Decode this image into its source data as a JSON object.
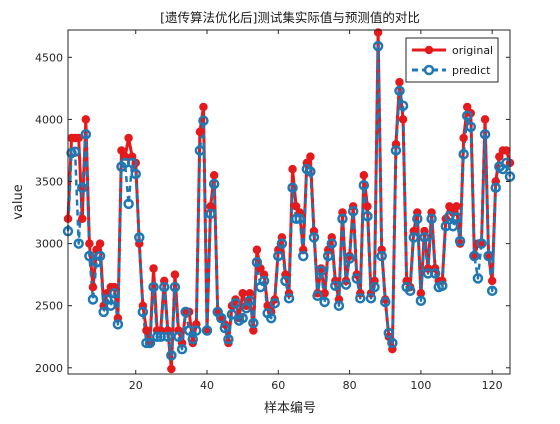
{
  "chart_data": {
    "type": "line",
    "title": "[遗传算法优化后]测试集实际值与预测值的对比",
    "xlabel": "样本编号",
    "ylabel": "value",
    "xlim": [
      1,
      125
    ],
    "ylim": [
      1950,
      4720
    ],
    "xticks": [
      20,
      40,
      60,
      80,
      100,
      120
    ],
    "yticks": [
      2000,
      2500,
      3000,
      3500,
      4000,
      4500
    ],
    "grid": false,
    "legend_position": "top-right",
    "series": [
      {
        "name": "original",
        "color": "#e41a1c",
        "line": "solid",
        "marker": "filled-circle",
        "x": [
          1,
          2,
          3,
          4,
          5,
          6,
          7,
          8,
          9,
          10,
          11,
          12,
          13,
          14,
          15,
          16,
          17,
          18,
          19,
          20,
          21,
          22,
          23,
          24,
          25,
          26,
          27,
          28,
          29,
          30,
          31,
          32,
          33,
          34,
          35,
          36,
          37,
          38,
          39,
          40,
          41,
          42,
          43,
          44,
          45,
          46,
          47,
          48,
          49,
          50,
          51,
          52,
          53,
          54,
          55,
          56,
          57,
          58,
          59,
          60,
          61,
          62,
          63,
          64,
          65,
          66,
          67,
          68,
          69,
          70,
          71,
          72,
          73,
          74,
          75,
          76,
          77,
          78,
          79,
          80,
          81,
          82,
          83,
          84,
          85,
          86,
          87,
          88,
          89,
          90,
          91,
          92,
          93,
          94,
          95,
          96,
          97,
          98,
          99,
          100,
          101,
          102,
          103,
          104,
          105,
          106,
          107,
          108,
          109,
          110,
          111,
          112,
          113,
          114,
          115,
          116,
          117,
          118,
          119,
          120,
          121,
          122,
          123,
          124,
          125
        ],
        "values": [
          3200,
          3850,
          3850,
          3850,
          3200,
          4000,
          3000,
          2650,
          2950,
          3000,
          2500,
          2600,
          2650,
          2650,
          2400,
          3750,
          3700,
          3850,
          3700,
          3650,
          3000,
          2500,
          2300,
          2200,
          2800,
          2300,
          2300,
          2700,
          2300,
          1990,
          2750,
          2300,
          2200,
          2450,
          2450,
          2200,
          2350,
          3900,
          4100,
          2300,
          3300,
          3550,
          2450,
          2400,
          2350,
          2200,
          2500,
          2550,
          2400,
          2600,
          2500,
          2600,
          2300,
          2950,
          2800,
          2750,
          2500,
          2450,
          2550,
          2950,
          3050,
          2750,
          2600,
          3600,
          3300,
          3250,
          2950,
          3650,
          3700,
          3100,
          2600,
          2800,
          2600,
          2950,
          3050,
          2700,
          2550,
          3250,
          2700,
          2900,
          3300,
          2750,
          2600,
          3550,
          3300,
          2600,
          2700,
          4700,
          2950,
          2550,
          2250,
          2150,
          3800,
          4300,
          4000,
          2700,
          2650,
          3100,
          3250,
          2600,
          3100,
          2800,
          3250,
          2800,
          2700,
          2700,
          3200,
          3300,
          3250,
          3300,
          3000,
          3850,
          4100,
          4050,
          2900,
          3000,
          3000,
          4000,
          2900,
          2700,
          3500,
          3700,
          3750,
          3750,
          3650
        ]
      },
      {
        "name": "predict",
        "color": "#1f78b4",
        "line": "dashed",
        "marker": "open-circle",
        "x": [
          1,
          2,
          3,
          4,
          5,
          6,
          7,
          8,
          9,
          10,
          11,
          12,
          13,
          14,
          15,
          16,
          17,
          18,
          19,
          20,
          21,
          22,
          23,
          24,
          25,
          26,
          27,
          28,
          29,
          30,
          31,
          32,
          33,
          34,
          35,
          36,
          37,
          38,
          39,
          40,
          41,
          42,
          43,
          44,
          45,
          46,
          47,
          48,
          49,
          50,
          51,
          52,
          53,
          54,
          55,
          56,
          57,
          58,
          59,
          60,
          61,
          62,
          63,
          64,
          65,
          66,
          67,
          68,
          69,
          70,
          71,
          72,
          73,
          74,
          75,
          76,
          77,
          78,
          79,
          80,
          81,
          82,
          83,
          84,
          85,
          86,
          87,
          88,
          89,
          90,
          91,
          92,
          93,
          94,
          95,
          96,
          97,
          98,
          99,
          100,
          101,
          102,
          103,
          104,
          105,
          106,
          107,
          108,
          109,
          110,
          111,
          112,
          113,
          114,
          115,
          116,
          117,
          118,
          119,
          120,
          121,
          122,
          123,
          124,
          125
        ],
        "values": [
          3100,
          3730,
          3740,
          3000,
          3450,
          3880,
          2900,
          2550,
          2850,
          2900,
          2450,
          2550,
          2500,
          2600,
          2350,
          3620,
          3650,
          3320,
          3650,
          3560,
          3050,
          2450,
          2200,
          2200,
          2650,
          2250,
          2250,
          2650,
          2250,
          2100,
          2650,
          2250,
          2150,
          2450,
          2300,
          2230,
          2300,
          3750,
          3990,
          2300,
          3240,
          3480,
          2450,
          2400,
          2320,
          2230,
          2430,
          2520,
          2380,
          2400,
          2480,
          2540,
          2360,
          2850,
          2650,
          2700,
          2440,
          2400,
          2520,
          2900,
          3000,
          2700,
          2560,
          3450,
          3200,
          3200,
          2900,
          3600,
          3580,
          3050,
          2580,
          2780,
          2530,
          2900,
          3000,
          2660,
          2500,
          3200,
          2670,
          2880,
          3260,
          2720,
          2560,
          3470,
          3220,
          2560,
          2650,
          4590,
          2900,
          2530,
          2280,
          2200,
          3750,
          4230,
          4110,
          2650,
          2620,
          3050,
          3200,
          2540,
          3050,
          2760,
          3200,
          2760,
          2650,
          2660,
          3140,
          3220,
          3140,
          3210,
          3020,
          3720,
          4030,
          3940,
          2900,
          2720,
          3000,
          3880,
          2900,
          2620,
          3450,
          3620,
          3600,
          3650,
          3540
        ]
      }
    ]
  }
}
